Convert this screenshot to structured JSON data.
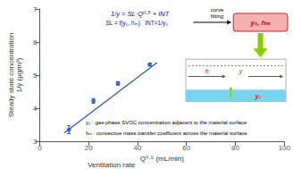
{
  "chart_data": {
    "type": "scatter",
    "xlabel": "Q⁰·⁵ (mL/min)",
    "ylabel": "Steady state concentration\n1/y (μg/m³)",
    "xlim": [
      0,
      100
    ],
    "ylim": [
      3.0,
      7.0
    ],
    "xticks": [
      0,
      20,
      40,
      60,
      80,
      100
    ],
    "yticks": [
      3,
      4,
      5,
      6,
      7
    ],
    "grid": false,
    "series": [
      {
        "type": "line",
        "color": "#2255cc",
        "x": [
          10,
          48
        ],
        "values": [
          3.25,
          5.38
        ]
      },
      {
        "type": "scatter",
        "color": "#2255cc",
        "marker": "circle",
        "x": [
          12,
          22,
          32,
          45
        ],
        "values": [
          3.35,
          4.22,
          4.75,
          5.32
        ],
        "y_err": [
          0.12,
          0.07,
          0.05,
          0.04
        ]
      }
    ],
    "annotations": [
      {
        "text": "Ventilation rate"
      },
      {
        "text": "1/y = SL·Q⁰·⁵ + INT",
        "color": "#2200aa"
      },
      {
        "text": "SL = f(y₀, hₘ)   INT=1/y₀",
        "color": "#2200aa"
      },
      {
        "text": "curve\nfitting",
        "color": "#000000"
      },
      {
        "text": "y₀, hₘ",
        "color": "#cc0000"
      },
      {
        "text": "h",
        "color": "#ff0000"
      },
      {
        "text": "y",
        "color": "#8B4513"
      },
      {
        "text": "y₀",
        "color": "#ff0000"
      },
      {
        "text": "y₀ : gas-phase SVOC concentration adjacent to the material surface",
        "color": "#000000"
      },
      {
        "text": "hₘ : convective mass transfer coefficient across the material surface",
        "color": "#000000"
      }
    ]
  }
}
